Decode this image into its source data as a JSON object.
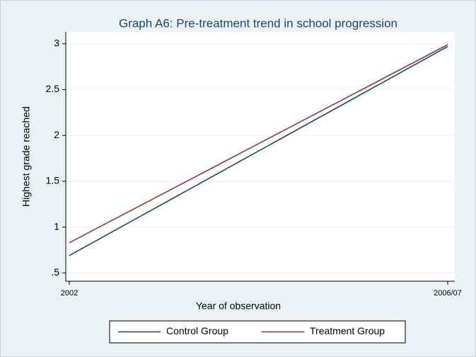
{
  "chart_data": {
    "type": "line",
    "title": "Graph A6: Pre-treatment trend in school progression",
    "x_label": "Year of observation",
    "y_label": "Highest grade reached",
    "categories": [
      "2002",
      "2006/07"
    ],
    "series": [
      {
        "name": "Control Group",
        "color": "#1a476f",
        "values": [
          0.69,
          2.97
        ]
      },
      {
        "name": "Treatment Group",
        "color": "#90353b",
        "values": [
          0.83,
          2.99
        ]
      }
    ],
    "ylim": [
      0.41,
      3.13
    ],
    "yticks": [
      {
        "value": 0.5,
        "label": ".5"
      },
      1,
      1.5,
      2,
      2.5,
      3
    ],
    "grid": true,
    "legend": "bottom"
  }
}
